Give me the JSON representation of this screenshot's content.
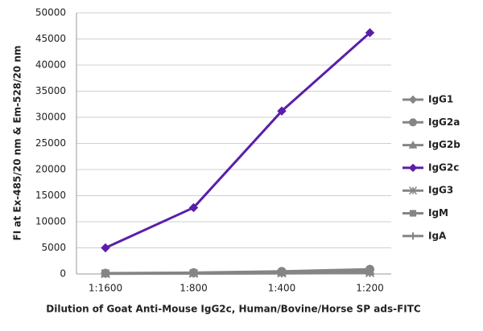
{
  "chart_data": {
    "type": "line",
    "y_label": "FI at Ex-485/20 nm & Em-528/20 nm",
    "x_label": "Dilution of Goat Anti-Mouse IgG2c, Human/Bovine/Horse SP ads-FITC",
    "categories": [
      "1:1600",
      "1:800",
      "1:400",
      "1:200"
    ],
    "ylim": [
      0,
      50000
    ],
    "yticks": [
      0,
      5000,
      10000,
      15000,
      20000,
      25000,
      30000,
      35000,
      40000,
      45000,
      50000
    ],
    "grid": true,
    "legend": "right",
    "series": [
      {
        "name": "IgG1",
        "color": "#858585",
        "marker": "diamond",
        "values": [
          100,
          200,
          400,
          800
        ]
      },
      {
        "name": "IgG2a",
        "color": "#858585",
        "marker": "circle",
        "values": [
          150,
          250,
          500,
          900
        ]
      },
      {
        "name": "IgG2b",
        "color": "#858585",
        "marker": "triangle",
        "values": [
          100,
          150,
          300,
          500
        ]
      },
      {
        "name": "IgG2c",
        "color": "#5a1fa8",
        "marker": "diamond",
        "values": [
          5000,
          12700,
          31200,
          46200
        ]
      },
      {
        "name": "IgG3",
        "color": "#858585",
        "marker": "asterisk",
        "values": [
          50,
          100,
          150,
          200
        ]
      },
      {
        "name": "IgM",
        "color": "#858585",
        "marker": "square",
        "values": [
          100,
          150,
          250,
          400
        ]
      },
      {
        "name": "IgA",
        "color": "#858585",
        "marker": "plus",
        "values": [
          50,
          80,
          120,
          200
        ]
      }
    ]
  }
}
